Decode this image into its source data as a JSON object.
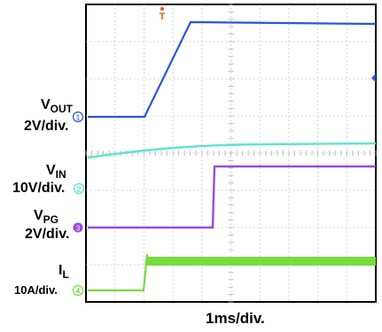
{
  "chart_data": {
    "type": "line",
    "title": "",
    "xlabel": "1ms/div.",
    "x_divisions": 10,
    "y_divisions": 8,
    "grid": true,
    "trigger_marker": "T",
    "channels": [
      {
        "id": "1",
        "name": "V",
        "sub": "OUT",
        "scale": "2V/div.",
        "color": "#2d55d4"
      },
      {
        "id": "2",
        "name": "V",
        "sub": "IN",
        "scale": "10V/div.",
        "color": "#5fe3cf"
      },
      {
        "id": "3",
        "name": "V",
        "sub": "PG",
        "scale": "2V/div.",
        "color": "#9b49d9"
      },
      {
        "id": "4",
        "name": "I",
        "sub": "L",
        "scale": "10A/div.",
        "color": "#78dc3c"
      }
    ]
  }
}
